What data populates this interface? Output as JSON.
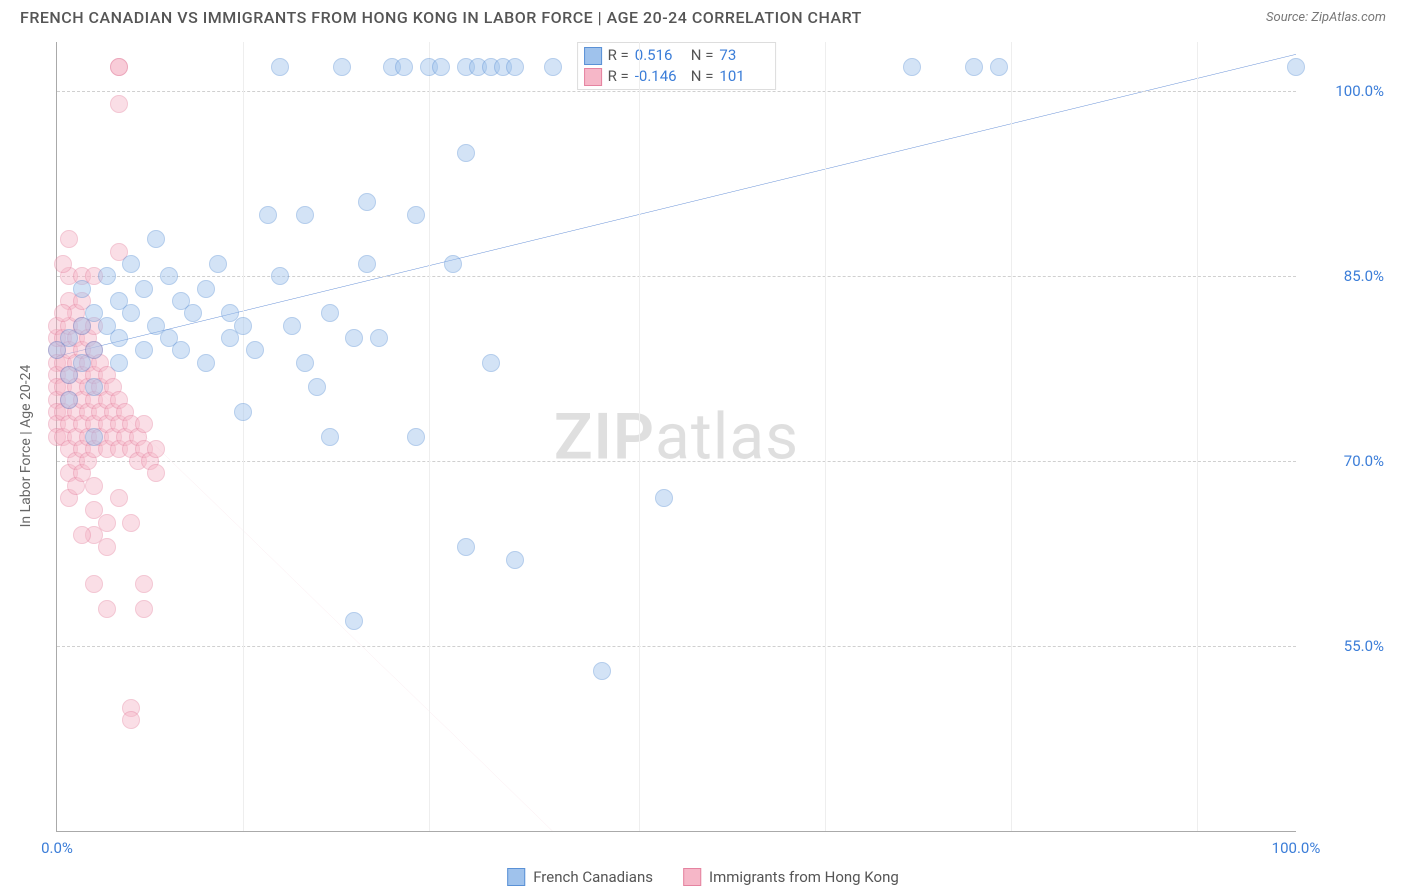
{
  "header": {
    "title": "FRENCH CANADIAN VS IMMIGRANTS FROM HONG KONG IN LABOR FORCE | AGE 20-24 CORRELATION CHART",
    "source": "Source: ZipAtlas.com"
  },
  "watermark": {
    "part1": "ZIP",
    "part2": "atlas"
  },
  "chart": {
    "type": "scatter",
    "y_axis_label": "In Labor Force | Age 20-24",
    "xlim": [
      0,
      100
    ],
    "ylim": [
      40,
      104
    ],
    "x_ticks": [
      {
        "pos": 0,
        "label": "0.0%"
      },
      {
        "pos": 100,
        "label": "100.0%"
      }
    ],
    "y_ticks": [
      {
        "pos": 55,
        "label": "55.0%"
      },
      {
        "pos": 70,
        "label": "70.0%"
      },
      {
        "pos": 85,
        "label": "85.0%"
      },
      {
        "pos": 100,
        "label": "100.0%"
      }
    ],
    "v_gridlines": [
      15,
      30,
      47,
      62,
      77,
      92
    ],
    "background_color": "#ffffff",
    "grid_color": "#d8d8d8",
    "marker_radius": 9,
    "marker_opacity": 0.45,
    "series": [
      {
        "name": "French Canadians",
        "fill_color": "#9fc2ec",
        "stroke_color": "#5a91d6",
        "trend": {
          "x1": 0,
          "y1": 78.5,
          "x2": 100,
          "y2": 103,
          "color": "#2a65c7",
          "width": 3,
          "dash": "none"
        },
        "stats": {
          "R": "0.516",
          "N": "73"
        },
        "points": [
          [
            0,
            79
          ],
          [
            1,
            80
          ],
          [
            1,
            77
          ],
          [
            1,
            75
          ],
          [
            2,
            81
          ],
          [
            2,
            78
          ],
          [
            3,
            82
          ],
          [
            2,
            84
          ],
          [
            3,
            76
          ],
          [
            3,
            79
          ],
          [
            4,
            81
          ],
          [
            4,
            85
          ],
          [
            5,
            83
          ],
          [
            5,
            80
          ],
          [
            5,
            78
          ],
          [
            6,
            82
          ],
          [
            6,
            86
          ],
          [
            7,
            84
          ],
          [
            7,
            79
          ],
          [
            8,
            81
          ],
          [
            8,
            88
          ],
          [
            9,
            85
          ],
          [
            9,
            80
          ],
          [
            10,
            83
          ],
          [
            10,
            79
          ],
          [
            11,
            82
          ],
          [
            12,
            84
          ],
          [
            12,
            78
          ],
          [
            13,
            86
          ],
          [
            14,
            82
          ],
          [
            14,
            80
          ],
          [
            15,
            81
          ],
          [
            15,
            74
          ],
          [
            16,
            79
          ],
          [
            17,
            90
          ],
          [
            18,
            85
          ],
          [
            18,
            102
          ],
          [
            19,
            81
          ],
          [
            20,
            90
          ],
          [
            20,
            78
          ],
          [
            21,
            76
          ],
          [
            22,
            72
          ],
          [
            22,
            82
          ],
          [
            23,
            102
          ],
          [
            24,
            57
          ],
          [
            25,
            91
          ],
          [
            25,
            86
          ],
          [
            26,
            80
          ],
          [
            27,
            102
          ],
          [
            28,
            102
          ],
          [
            29,
            90
          ],
          [
            29,
            72
          ],
          [
            30,
            102
          ],
          [
            31,
            102
          ],
          [
            32,
            86
          ],
          [
            33,
            102
          ],
          [
            33,
            95
          ],
          [
            34,
            102
          ],
          [
            35,
            102
          ],
          [
            36,
            102
          ],
          [
            35,
            78
          ],
          [
            33,
            63
          ],
          [
            24,
            80
          ],
          [
            37,
            62
          ],
          [
            37,
            102
          ],
          [
            40,
            102
          ],
          [
            44,
            53
          ],
          [
            49,
            67
          ],
          [
            69,
            102
          ],
          [
            74,
            102
          ],
          [
            76,
            102
          ],
          [
            100,
            102
          ],
          [
            3,
            72
          ]
        ]
      },
      {
        "name": "Immigrants from Hong Kong",
        "fill_color": "#f6b7c8",
        "stroke_color": "#e583a0",
        "trend": {
          "x1": 0,
          "y1": 79,
          "x2": 40,
          "y2": 40,
          "color": "#e583a0",
          "width": 1.2,
          "dash": "5,4"
        },
        "stats": {
          "R": "-0.146",
          "N": "101"
        },
        "points": [
          [
            0,
            79
          ],
          [
            0,
            78
          ],
          [
            0,
            77
          ],
          [
            0,
            76
          ],
          [
            0,
            75
          ],
          [
            0,
            74
          ],
          [
            0,
            73
          ],
          [
            0,
            72
          ],
          [
            0,
            80
          ],
          [
            0,
            81
          ],
          [
            0.5,
            78
          ],
          [
            0.5,
            76
          ],
          [
            0.5,
            74
          ],
          [
            0.5,
            72
          ],
          [
            0.5,
            80
          ],
          [
            1,
            79
          ],
          [
            1,
            77
          ],
          [
            1,
            75
          ],
          [
            1,
            73
          ],
          [
            1,
            71
          ],
          [
            1,
            69
          ],
          [
            1,
            67
          ],
          [
            1,
            81
          ],
          [
            1,
            83
          ],
          [
            1.5,
            78
          ],
          [
            1.5,
            76
          ],
          [
            1.5,
            74
          ],
          [
            1.5,
            72
          ],
          [
            1.5,
            70
          ],
          [
            1.5,
            68
          ],
          [
            1.5,
            80
          ],
          [
            1.5,
            82
          ],
          [
            2,
            77
          ],
          [
            2,
            75
          ],
          [
            2,
            73
          ],
          [
            2,
            71
          ],
          [
            2,
            69
          ],
          [
            2,
            79
          ],
          [
            2,
            81
          ],
          [
            2,
            83
          ],
          [
            2.5,
            76
          ],
          [
            2.5,
            74
          ],
          [
            2.5,
            72
          ],
          [
            2.5,
            70
          ],
          [
            2.5,
            78
          ],
          [
            2.5,
            80
          ],
          [
            3,
            75
          ],
          [
            3,
            73
          ],
          [
            3,
            71
          ],
          [
            3,
            77
          ],
          [
            3,
            79
          ],
          [
            3,
            81
          ],
          [
            3,
            68
          ],
          [
            3,
            66
          ],
          [
            3,
            64
          ],
          [
            3.5,
            74
          ],
          [
            3.5,
            72
          ],
          [
            3.5,
            76
          ],
          [
            3.5,
            78
          ],
          [
            4,
            73
          ],
          [
            4,
            71
          ],
          [
            4,
            75
          ],
          [
            4,
            77
          ],
          [
            4,
            65
          ],
          [
            4,
            63
          ],
          [
            4.5,
            72
          ],
          [
            4.5,
            74
          ],
          [
            4.5,
            76
          ],
          [
            5,
            71
          ],
          [
            5,
            73
          ],
          [
            5,
            75
          ],
          [
            5,
            67
          ],
          [
            5,
            87
          ],
          [
            5,
            99
          ],
          [
            5,
            102
          ],
          [
            5,
            102
          ],
          [
            5.5,
            72
          ],
          [
            5.5,
            74
          ],
          [
            6,
            71
          ],
          [
            6,
            73
          ],
          [
            6,
            65
          ],
          [
            6,
            50
          ],
          [
            6,
            49
          ],
          [
            6.5,
            72
          ],
          [
            6.5,
            70
          ],
          [
            7,
            71
          ],
          [
            7,
            73
          ],
          [
            7,
            60
          ],
          [
            7,
            58
          ],
          [
            7.5,
            70
          ],
          [
            8,
            71
          ],
          [
            8,
            69
          ],
          [
            1,
            85
          ],
          [
            0.5,
            86
          ],
          [
            2,
            85
          ],
          [
            1,
            88
          ],
          [
            0.5,
            82
          ],
          [
            3,
            85
          ],
          [
            2,
            64
          ],
          [
            3,
            60
          ],
          [
            4,
            58
          ]
        ]
      }
    ]
  },
  "legend": {
    "items": [
      {
        "label": "French Canadians",
        "fill": "#9fc2ec",
        "stroke": "#5a91d6"
      },
      {
        "label": "Immigrants from Hong Kong",
        "fill": "#f6b7c8",
        "stroke": "#e583a0"
      }
    ]
  },
  "stats_box": {
    "r_prefix": "R =",
    "n_prefix": "N ="
  }
}
